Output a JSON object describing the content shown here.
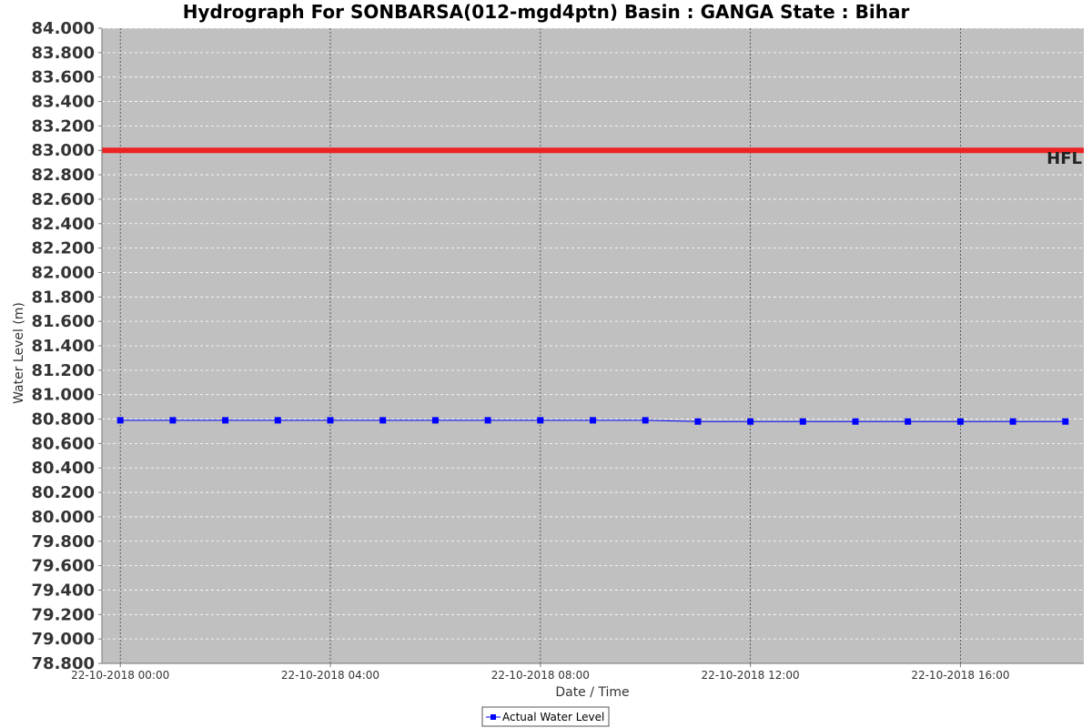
{
  "chart_data": {
    "type": "line",
    "title": "Hydrograph For SONBARSA(012-mgd4ptn) Basin : GANGA State : Bihar",
    "xlabel": "Date / Time",
    "ylabel": "Water Level (m)",
    "ylim": [
      78.8,
      84.0
    ],
    "y_tick_step": 0.2,
    "x_tick_labels": [
      "22-10-2018 00:00",
      "22-10-2018 04:00",
      "22-10-2018 08:00",
      "22-10-2018 12:00",
      "22-10-2018 16:00"
    ],
    "x_tick_hours": [
      0,
      4,
      8,
      12,
      16
    ],
    "x_range_hours": [
      -0.35,
      18.35
    ],
    "grid": true,
    "legend_position": "bottom-center",
    "plot_background": "#c0c0c0",
    "reference_line": {
      "label": "HFL",
      "value": 83.0,
      "color": "#ee2222"
    },
    "series": [
      {
        "name": "Actual Water Level",
        "color": "#0000ff",
        "marker": "square",
        "x_hours": [
          0,
          1,
          2,
          3,
          4,
          5,
          6,
          7,
          8,
          9,
          10,
          11,
          12,
          13,
          14,
          15,
          16,
          17,
          18
        ],
        "values": [
          80.79,
          80.79,
          80.79,
          80.79,
          80.79,
          80.79,
          80.79,
          80.79,
          80.79,
          80.79,
          80.79,
          80.78,
          80.78,
          80.78,
          80.78,
          80.78,
          80.78,
          80.78,
          80.78
        ]
      }
    ]
  }
}
